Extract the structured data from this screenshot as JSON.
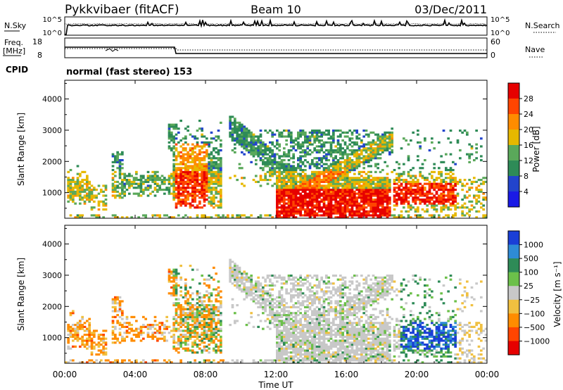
{
  "header": {
    "station": "Pykkvibaer (fitACF)",
    "beam": "Beam 10",
    "date": "03/Dec/2011"
  },
  "status_panel": {
    "nsky_label": "N.Sky",
    "nsky_ticks": [
      "10^5",
      "10^0"
    ],
    "nsearch_label": "N.Search",
    "nsearch_ticks": [
      "10^5",
      "10^0"
    ],
    "freq_label_line1": "Freq.",
    "freq_label_line2": "[MHz]",
    "freq_ticks": [
      "18",
      "8"
    ],
    "nave_label": "Nave",
    "nave_ticks": [
      "60",
      "0"
    ],
    "cpid_label": "CPID",
    "cpid_value": "normal (fast stereo) 153"
  },
  "colors": {
    "power_scale": [
      "#1a1ae6",
      "#2244cc",
      "#2e8b57",
      "#5aa85a",
      "#e6b800",
      "#ff8c00",
      "#ff4500",
      "#e60000"
    ],
    "velocity_scale": [
      "#1a3fd6",
      "#2e8bd6",
      "#2e8b57",
      "#6cc04a",
      "#c8c8c8",
      "#f0c040",
      "#ff8c00",
      "#ff4500",
      "#e60000"
    ]
  },
  "chart_data": [
    {
      "type": "heatmap",
      "name": "power",
      "ylabel": "Slant Range [km]",
      "xlabel": "Time UT",
      "x_ticks": [
        "00:00",
        "04:00",
        "08:00",
        "12:00",
        "16:00",
        "20:00",
        "00:00"
      ],
      "x_range_hours": [
        0,
        24
      ],
      "y_ticks": [
        "1000",
        "2000",
        "3000",
        "4000"
      ],
      "y_range_km": [
        180,
        4600
      ],
      "colorbar_label": "Power [dB]",
      "colorbar_ticks": [
        "4",
        "8",
        "12",
        "16",
        "20",
        "24",
        "28"
      ]
    },
    {
      "type": "heatmap",
      "name": "velocity",
      "ylabel": "Slant Range [km]",
      "xlabel": "Time UT",
      "x_ticks": [
        "00:00",
        "04:00",
        "08:00",
        "12:00",
        "16:00",
        "20:00",
        "00:00"
      ],
      "x_range_hours": [
        0,
        24
      ],
      "y_ticks": [
        "1000",
        "2000",
        "3000",
        "4000"
      ],
      "y_range_km": [
        180,
        4600
      ],
      "colorbar_label": "Velocity [m s⁻¹]",
      "colorbar_ticks": [
        "1000",
        "500",
        "100",
        "25",
        "−25",
        "−100",
        "−500",
        "−1000"
      ]
    }
  ],
  "x_axis_title": "Time UT"
}
